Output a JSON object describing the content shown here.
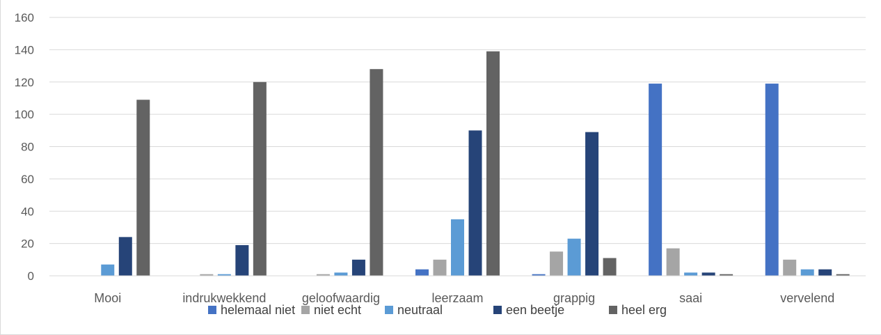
{
  "chart_data": {
    "type": "bar",
    "title": "",
    "xlabel": "",
    "ylabel": "",
    "ylim": [
      0,
      160
    ],
    "yticks": [
      0,
      20,
      40,
      60,
      80,
      100,
      120,
      140,
      160
    ],
    "ytick_labels": [
      "0",
      "20",
      "40",
      "60",
      "80",
      "100",
      "120",
      "140",
      "160"
    ],
    "grid": true,
    "legend_position": "bottom",
    "categories": [
      "Mooi",
      "indrukwekkend",
      "geloofwaardig",
      "leerzaam",
      "grappig",
      "saai",
      "vervelend"
    ],
    "series": [
      {
        "name": "helemaal niet",
        "color": "#4472c4",
        "values": [
          0,
          0,
          0,
          4,
          1,
          119,
          119
        ]
      },
      {
        "name": "niet echt",
        "color": "#a5a5a5",
        "values": [
          0,
          1,
          1,
          10,
          15,
          17,
          10
        ]
      },
      {
        "name": "neutraal",
        "color": "#5b9bd5",
        "values": [
          7,
          1,
          2,
          35,
          23,
          2,
          4
        ]
      },
      {
        "name": "een beetje",
        "color": "#264478",
        "values": [
          24,
          19,
          10,
          90,
          89,
          2,
          4
        ]
      },
      {
        "name": "heel erg",
        "color": "#636363",
        "values": [
          109,
          120,
          128,
          139,
          11,
          1,
          1
        ]
      }
    ]
  }
}
